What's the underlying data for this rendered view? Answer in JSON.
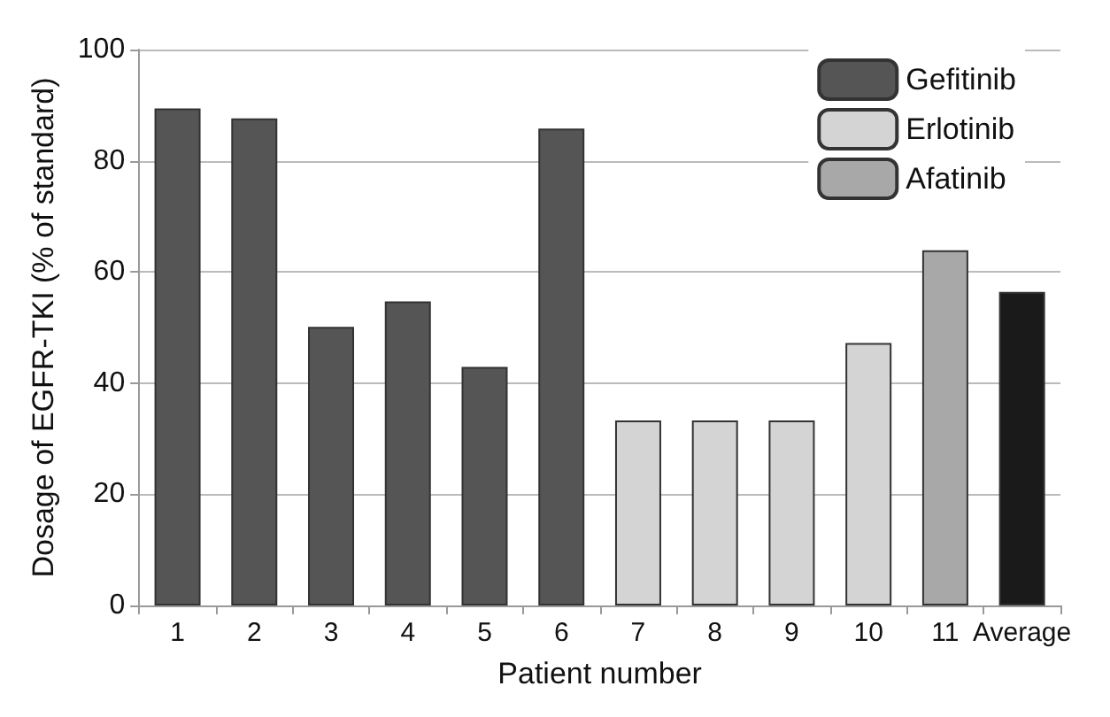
{
  "chart_data": {
    "type": "bar",
    "xlabel": "Patient number",
    "ylabel": "Dosage of EGFR-TKI (% of standard)",
    "categories": [
      "1",
      "2",
      "3",
      "4",
      "5",
      "6",
      "7",
      "8",
      "9",
      "10",
      "11",
      "Average"
    ],
    "series": [
      {
        "name": "Gefitinib",
        "color": "#555555",
        "values": [
          89.4,
          87.6,
          50.1,
          54.7,
          42.9,
          85.8,
          null,
          null,
          null,
          null,
          null,
          null
        ]
      },
      {
        "name": "Erlotinib",
        "color": "#d4d4d4",
        "values": [
          null,
          null,
          null,
          null,
          null,
          null,
          33.3,
          33.3,
          33.3,
          47.2,
          null,
          null
        ]
      },
      {
        "name": "Afatinib",
        "color": "#a8a8a8",
        "values": [
          null,
          null,
          null,
          null,
          null,
          null,
          null,
          null,
          null,
          null,
          63.9,
          null
        ]
      },
      {
        "color": "#1a1a1a",
        "values": [
          null,
          null,
          null,
          null,
          null,
          null,
          null,
          null,
          null,
          null,
          null,
          56.4
        ]
      }
    ],
    "ylim": [
      0,
      100
    ],
    "yticks": [
      0,
      20,
      40,
      60,
      80,
      100
    ],
    "grid": "y",
    "legend": "top right"
  }
}
